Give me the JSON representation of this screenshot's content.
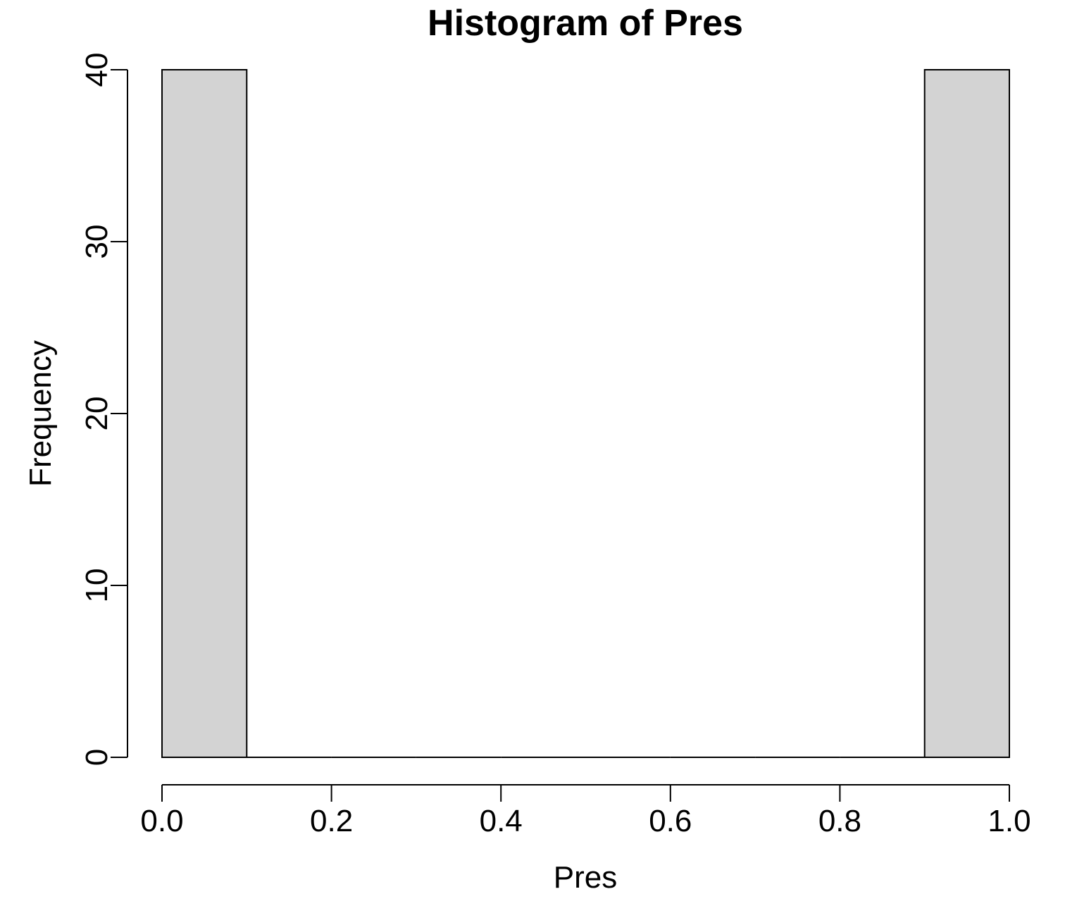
{
  "chart_data": {
    "type": "bar",
    "title": "Histogram of Pres",
    "xlabel": "Pres",
    "ylabel": "Frequency",
    "bins": [
      {
        "start": 0.0,
        "end": 0.1,
        "count": 40
      },
      {
        "start": 0.1,
        "end": 0.2,
        "count": 0
      },
      {
        "start": 0.2,
        "end": 0.3,
        "count": 0
      },
      {
        "start": 0.3,
        "end": 0.4,
        "count": 0
      },
      {
        "start": 0.4,
        "end": 0.5,
        "count": 0
      },
      {
        "start": 0.5,
        "end": 0.6,
        "count": 0
      },
      {
        "start": 0.6,
        "end": 0.7,
        "count": 0
      },
      {
        "start": 0.7,
        "end": 0.8,
        "count": 0
      },
      {
        "start": 0.8,
        "end": 0.9,
        "count": 0
      },
      {
        "start": 0.9,
        "end": 1.0,
        "count": 40
      }
    ],
    "xlim": [
      0,
      1
    ],
    "ylim": [
      0,
      40
    ],
    "x_ticks": [
      "0.0",
      "0.2",
      "0.4",
      "0.6",
      "0.8",
      "1.0"
    ],
    "y_ticks": [
      "0",
      "10",
      "20",
      "30",
      "40"
    ],
    "bar_fill": "#d3d3d3",
    "grid": false
  }
}
